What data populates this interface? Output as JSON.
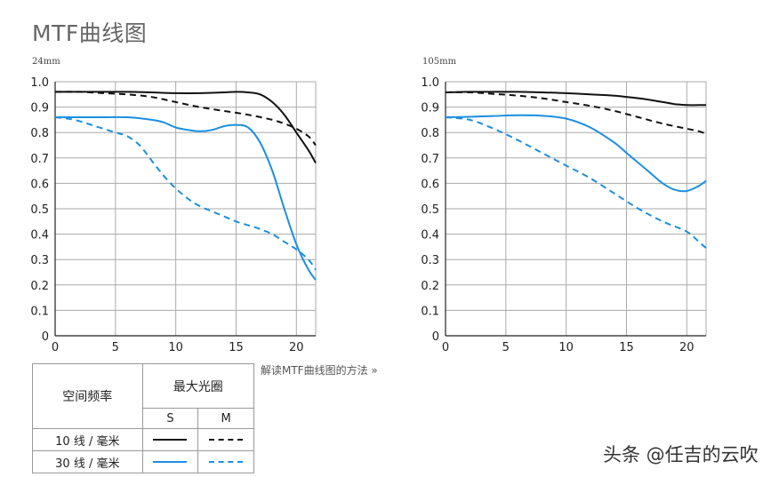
{
  "page": {
    "title": "MTF曲线图",
    "howto_link": "解读MTF曲线图的方法 »",
    "watermark": "头条 @任吉的云吹"
  },
  "legend": {
    "freq_header": "空间频率",
    "aperture_header": "最大光圈",
    "s_label": "S",
    "m_label": "M",
    "row1_label": "10 线 / 毫米",
    "row2_label": "30 线 / 毫米"
  },
  "colors": {
    "lp10": "#111111",
    "lp30": "#1a8fe0",
    "grid": "#aaaaaa"
  },
  "chart_data": [
    {
      "type": "line",
      "title": "24mm",
      "xlim": [
        0,
        21.6
      ],
      "ylim": [
        0,
        1.0
      ],
      "xticks": [
        "0",
        "5",
        "10",
        "15",
        "20"
      ],
      "yticks": [
        "0",
        "0.1",
        "0.2",
        "0.3",
        "0.4",
        "0.5",
        "0.6",
        "0.7",
        "0.8",
        "0.9",
        "1.0"
      ],
      "grid": true,
      "series": [
        {
          "freq": "10",
          "orient": "S",
          "x": [
            0,
            2,
            4,
            6,
            8,
            10,
            12,
            14,
            15,
            16,
            17,
            18,
            19,
            20,
            21,
            21.6
          ],
          "y": [
            0.96,
            0.96,
            0.96,
            0.96,
            0.958,
            0.955,
            0.955,
            0.958,
            0.96,
            0.958,
            0.95,
            0.92,
            0.87,
            0.8,
            0.73,
            0.68
          ]
        },
        {
          "freq": "10",
          "orient": "M",
          "x": [
            0,
            2,
            4,
            6,
            8,
            10,
            12,
            14,
            16,
            18,
            19,
            20,
            21,
            21.6
          ],
          "y": [
            0.96,
            0.96,
            0.955,
            0.95,
            0.94,
            0.92,
            0.9,
            0.885,
            0.87,
            0.85,
            0.835,
            0.815,
            0.785,
            0.75
          ]
        },
        {
          "freq": "30",
          "orient": "S",
          "x": [
            0,
            2,
            4,
            6,
            8,
            9,
            10,
            11,
            12,
            13,
            14,
            15,
            16,
            17,
            18,
            19,
            20,
            21,
            21.6
          ],
          "y": [
            0.86,
            0.86,
            0.86,
            0.86,
            0.85,
            0.84,
            0.82,
            0.81,
            0.805,
            0.81,
            0.825,
            0.83,
            0.82,
            0.76,
            0.65,
            0.5,
            0.36,
            0.26,
            0.22
          ]
        },
        {
          "freq": "30",
          "orient": "M",
          "x": [
            0,
            1,
            2,
            3,
            4,
            5,
            6,
            7,
            8,
            9,
            10,
            11,
            12,
            13,
            14,
            15,
            16,
            17,
            18,
            19,
            20,
            21,
            21.6
          ],
          "y": [
            0.86,
            0.855,
            0.845,
            0.83,
            0.815,
            0.8,
            0.785,
            0.75,
            0.69,
            0.63,
            0.58,
            0.54,
            0.51,
            0.49,
            0.47,
            0.45,
            0.435,
            0.42,
            0.4,
            0.37,
            0.34,
            0.3,
            0.26
          ]
        }
      ]
    },
    {
      "type": "line",
      "title": "105mm",
      "xlim": [
        0,
        21.6
      ],
      "ylim": [
        0,
        1.0
      ],
      "xticks": [
        "0",
        "5",
        "10",
        "15",
        "20"
      ],
      "yticks": [
        "0",
        "0.1",
        "0.2",
        "0.3",
        "0.4",
        "0.5",
        "0.6",
        "0.7",
        "0.8",
        "0.9",
        "1.0"
      ],
      "grid": true,
      "series": [
        {
          "freq": "10",
          "orient": "S",
          "x": [
            0,
            2,
            4,
            6,
            8,
            10,
            12,
            14,
            16,
            17,
            18,
            19,
            20,
            21,
            21.6
          ],
          "y": [
            0.958,
            0.96,
            0.96,
            0.96,
            0.958,
            0.955,
            0.95,
            0.945,
            0.935,
            0.928,
            0.92,
            0.912,
            0.908,
            0.908,
            0.908
          ]
        },
        {
          "freq": "10",
          "orient": "M",
          "x": [
            0,
            2,
            4,
            6,
            8,
            10,
            12,
            14,
            16,
            18,
            20,
            21,
            21.6
          ],
          "y": [
            0.958,
            0.958,
            0.952,
            0.945,
            0.935,
            0.92,
            0.905,
            0.885,
            0.86,
            0.835,
            0.815,
            0.805,
            0.795
          ]
        },
        {
          "freq": "30",
          "orient": "S",
          "x": [
            0,
            2,
            4,
            6,
            8,
            10,
            12,
            14,
            15,
            16,
            17,
            18,
            19,
            20,
            21,
            21.6
          ],
          "y": [
            0.86,
            0.862,
            0.865,
            0.868,
            0.866,
            0.855,
            0.82,
            0.76,
            0.72,
            0.68,
            0.64,
            0.6,
            0.575,
            0.57,
            0.59,
            0.61
          ]
        },
        {
          "freq": "30",
          "orient": "M",
          "x": [
            0,
            2,
            4,
            6,
            8,
            10,
            12,
            14,
            16,
            18,
            20,
            21,
            21.6
          ],
          "y": [
            0.86,
            0.85,
            0.815,
            0.77,
            0.72,
            0.67,
            0.62,
            0.56,
            0.5,
            0.45,
            0.41,
            0.37,
            0.345
          ]
        }
      ]
    }
  ]
}
